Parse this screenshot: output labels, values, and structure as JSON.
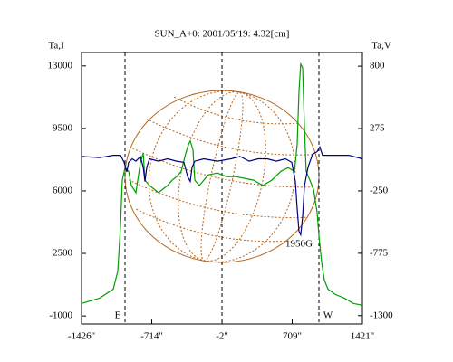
{
  "chart_data": {
    "type": "line",
    "title": "SUN_A+0: 2001/05/19: 4.32[cm]",
    "y_label": "Ta,I",
    "y2_label": "Ta,V",
    "annotations": [
      "E",
      "W",
      "1950G"
    ],
    "xlim": [
      -1426,
      1421
    ],
    "xticks": [
      {
        "value": -1426,
        "label": "-1426\""
      },
      {
        "value": -714,
        "label": "-714\""
      },
      {
        "value": -2,
        "label": "-2\""
      },
      {
        "value": 709,
        "label": "709\""
      },
      {
        "value": 1421,
        "label": "1421\""
      }
    ],
    "ylim": [
      -1450,
      13750
    ],
    "yticks": [
      13000,
      9500,
      6000,
      2500,
      -1000
    ],
    "y2lim": [
      -1370,
      915
    ],
    "y2ticks": [
      800,
      275,
      -250,
      -775,
      -1300
    ],
    "series": [
      {
        "name": "Ta,I",
        "color": "#00a000",
        "x": [
          -1426,
          -1242,
          -1105,
          -1059,
          -1031,
          -1013,
          -985,
          -948,
          -921,
          -875,
          -829,
          -801,
          -783,
          -737,
          -691,
          -645,
          -600,
          -554,
          -508,
          -462,
          -416,
          -370,
          -342,
          -324,
          -296,
          -278,
          -232,
          -140,
          -48,
          43,
          135,
          227,
          319,
          411,
          503,
          594,
          668,
          732,
          760,
          778,
          796,
          815,
          833,
          851,
          888,
          925,
          962,
          980,
          1008,
          1035,
          1072,
          1146,
          1238,
          1329,
          1421
        ],
        "values": [
          -300,
          0,
          500,
          1500,
          4000,
          6600,
          7300,
          7100,
          6300,
          5900,
          7600,
          8100,
          6600,
          6300,
          6100,
          5900,
          6100,
          6300,
          6600,
          6800,
          7100,
          8100,
          8600,
          8800,
          8300,
          6600,
          6300,
          6900,
          7000,
          6800,
          6800,
          6700,
          6600,
          6300,
          6600,
          7100,
          7300,
          7100,
          8600,
          11600,
          13100,
          12900,
          9600,
          7100,
          6600,
          6100,
          4800,
          3500,
          2000,
          1000,
          500,
          200,
          0,
          -300,
          -400
        ]
      },
      {
        "name": "Ta,V",
        "color": "#000080",
        "axis": "y2",
        "x": [
          -1426,
          -1242,
          -1105,
          -1031,
          -994,
          -967,
          -948,
          -912,
          -875,
          -829,
          -801,
          -783,
          -765,
          -737,
          -645,
          -554,
          -462,
          -388,
          -351,
          -324,
          -306,
          -278,
          -186,
          -48,
          89,
          181,
          273,
          365,
          457,
          548,
          640,
          705,
          741,
          760,
          778,
          796,
          815,
          833,
          870,
          916,
          962,
          989,
          1017,
          1146,
          1283,
          1421
        ],
        "values": [
          40,
          30,
          50,
          50,
          -10,
          -90,
          -10,
          20,
          0,
          40,
          -50,
          -170,
          -50,
          20,
          0,
          20,
          0,
          -10,
          -130,
          -170,
          -50,
          0,
          20,
          0,
          20,
          40,
          0,
          20,
          20,
          0,
          20,
          -10,
          -170,
          -400,
          -590,
          -620,
          -470,
          -210,
          -50,
          60,
          80,
          120,
          50,
          50,
          50,
          20
        ]
      }
    ]
  }
}
